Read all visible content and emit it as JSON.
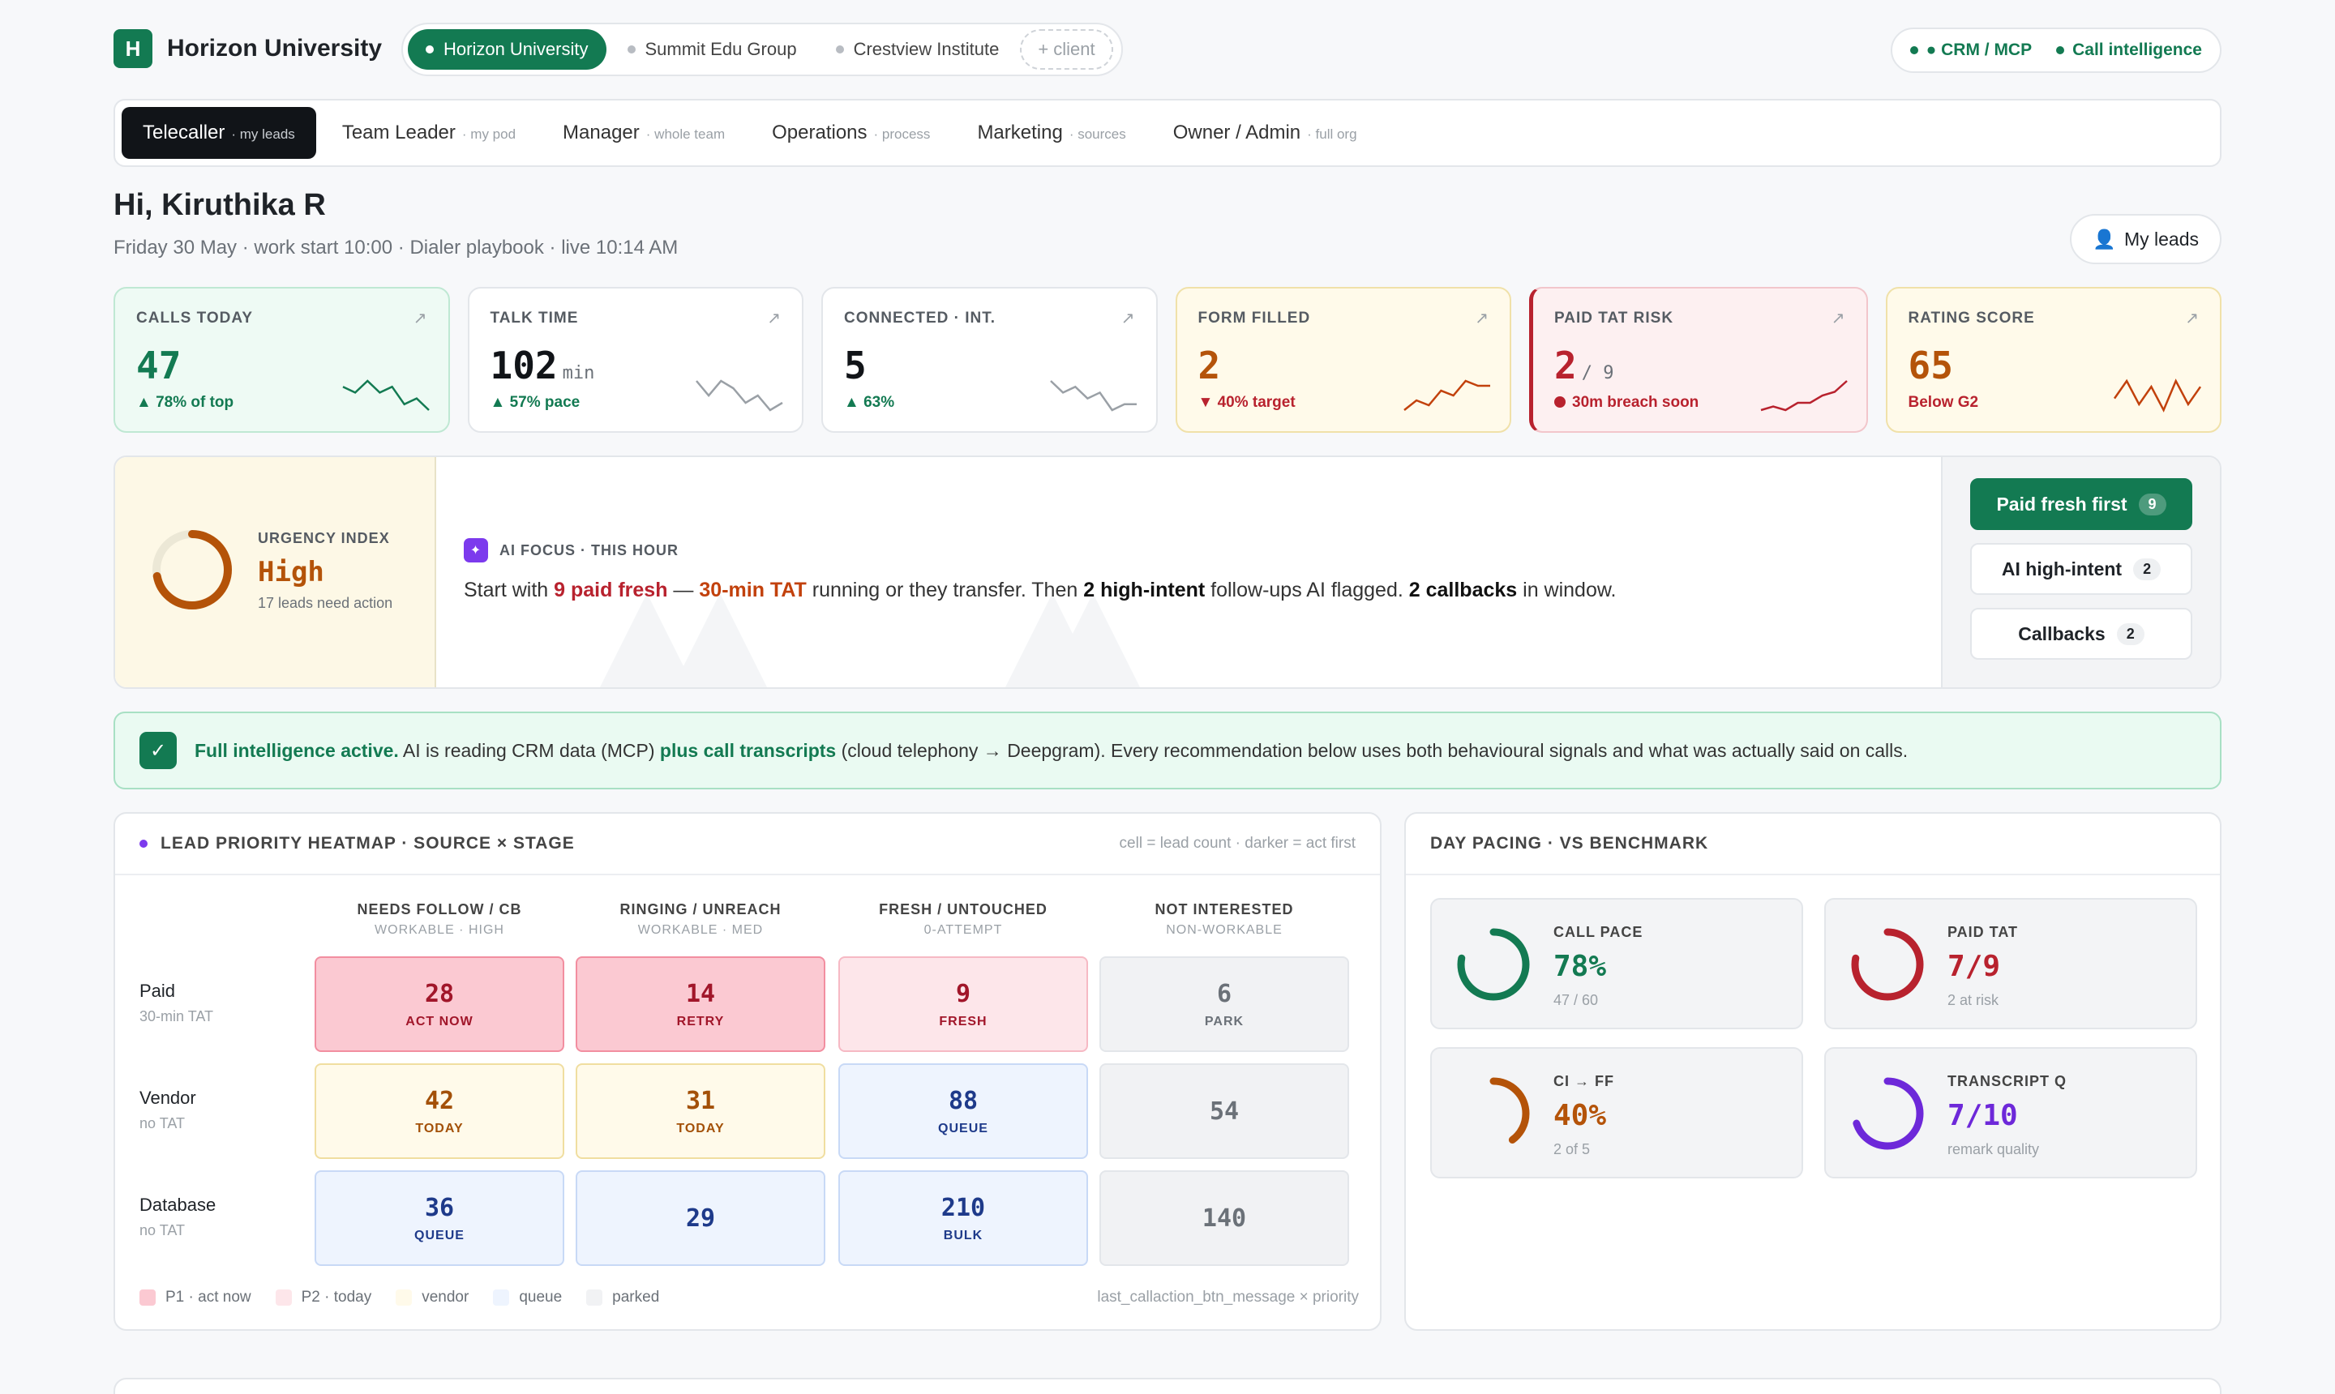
{
  "brand": {
    "logo_letter": "H",
    "name": "Horizon University"
  },
  "clients": [
    {
      "label": "Horizon University",
      "active": true
    },
    {
      "label": "Summit Edu Group",
      "active": false
    },
    {
      "label": "Crestview Institute",
      "active": false
    }
  ],
  "add_client_label": "+ client",
  "integrations": {
    "crm": "● CRM / MCP",
    "call": "Call intelligence"
  },
  "roles": [
    {
      "label": "Telecaller",
      "sub": "· my leads"
    },
    {
      "label": "Team Leader",
      "sub": "· my pod"
    },
    {
      "label": "Manager",
      "sub": "· whole team"
    },
    {
      "label": "Operations",
      "sub": "· process"
    },
    {
      "label": "Marketing",
      "sub": "· sources"
    },
    {
      "label": "Owner / Admin",
      "sub": "· full org"
    }
  ],
  "greeting": "Hi, Kiruthika R",
  "subline": "Friday 30 May · work start 10:00 · Dialer playbook · live 10:14 AM",
  "my_leads_label": "My leads",
  "kpis": [
    {
      "label": "CALLS TODAY",
      "value": "47",
      "unit": "",
      "sub": "▲ 78% of top",
      "tone": "g",
      "sub_color": "#137a52",
      "value_color": "#137a52",
      "spark_color": "#137a52",
      "spark": [
        6,
        7,
        5,
        7,
        6,
        9,
        8,
        10
      ]
    },
    {
      "label": "TALK TIME",
      "value": "102",
      "unit": "min",
      "sub": "▲ 57% pace",
      "tone": "n",
      "sub_color": "#137a52",
      "value_color": "#111418",
      "spark_color": "#9aa0a6",
      "spark": [
        6,
        8,
        6,
        7,
        9,
        8,
        10,
        9
      ]
    },
    {
      "label": "CONNECTED · INT.",
      "value": "5",
      "unit": "",
      "sub": "▲ 63%",
      "tone": "n",
      "sub_color": "#137a52",
      "value_color": "#111418",
      "spark_color": "#9aa0a6",
      "spark": [
        5,
        7,
        6,
        8,
        7,
        10,
        9,
        9
      ]
    },
    {
      "label": "FORM FILLED",
      "value": "2",
      "unit": "",
      "sub": "▼ 40% target",
      "tone": "y",
      "sub_color": "#b8222e",
      "value_color": "#b45309",
      "spark_color": "#c2410c",
      "spark": [
        10,
        8,
        9,
        6,
        7,
        4,
        5,
        5
      ]
    },
    {
      "label": "PAID TAT RISK",
      "value": "2",
      "unit": "/ 9",
      "sub": "30m breach soon",
      "tone": "r",
      "sub_color": "#b8222e",
      "value_color": "#b8222e",
      "spark_color": "#b8222e",
      "spark": [
        10,
        9,
        10,
        8,
        8,
        6,
        5,
        2
      ]
    },
    {
      "label": "RATING SCORE",
      "value": "65",
      "unit": "",
      "sub": "Below G2",
      "tone": "y",
      "sub_color": "#b8222e",
      "value_color": "#b45309",
      "spark_color": "#c2410c",
      "spark": [
        7,
        4,
        8,
        5,
        9,
        4,
        8,
        5
      ]
    }
  ],
  "urgency": {
    "title": "URGENCY INDEX",
    "value": "High",
    "sub": "17 leads need action",
    "fraction": 0.72
  },
  "ai_focus": {
    "tag": "AI FOCUS · THIS HOUR",
    "t1": "Start with ",
    "t2": "9 paid fresh",
    "t3": " — ",
    "t4": "30-min TAT",
    "t5": " running or they transfer. Then ",
    "t6": "2 high-intent",
    "t7": " follow-ups AI flagged. ",
    "t8": "2 callbacks",
    "t9": " in window."
  },
  "queue_buttons": [
    {
      "label": "Paid fresh first",
      "count": "9",
      "active": true
    },
    {
      "label": "AI high-intent",
      "count": "2",
      "active": false
    },
    {
      "label": "Callbacks",
      "count": "2",
      "active": false
    }
  ],
  "banner": {
    "b1": "Full intelligence active.",
    "b2": " AI is reading CRM data (MCP) ",
    "b3": "plus call transcripts",
    "b4": " (cloud telephony → Deepgram). Every recommendation below uses both behavioural signals and what was actually said on calls."
  },
  "heatmap": {
    "title": "LEAD PRIORITY HEATMAP · SOURCE × STAGE",
    "note": "cell = lead count · darker = act first",
    "columns": [
      {
        "name": "NEEDS FOLLOW / CB",
        "sub": "WORKABLE · HIGH"
      },
      {
        "name": "RINGING / UNREACH",
        "sub": "WORKABLE · MED"
      },
      {
        "name": "FRESH / UNTOUCHED",
        "sub": "0-ATTEMPT"
      },
      {
        "name": "NOT INTERESTED",
        "sub": "NON-WORKABLE"
      }
    ],
    "rows": [
      {
        "name": "Paid",
        "sub": "30-min TAT",
        "cells": [
          {
            "n": "28",
            "t": "ACT NOW",
            "c": "p1"
          },
          {
            "n": "14",
            "t": "RETRY",
            "c": "p1"
          },
          {
            "n": "9",
            "t": "FRESH",
            "c": "p2"
          },
          {
            "n": "6",
            "t": "PARK",
            "c": "pk"
          }
        ]
      },
      {
        "name": "Vendor",
        "sub": "no TAT",
        "cells": [
          {
            "n": "42",
            "t": "TODAY",
            "c": "ve"
          },
          {
            "n": "31",
            "t": "TODAY",
            "c": "ve"
          },
          {
            "n": "88",
            "t": "QUEUE",
            "c": "qu"
          },
          {
            "n": "54",
            "t": "",
            "c": "pk"
          }
        ]
      },
      {
        "name": "Database",
        "sub": "no TAT",
        "cells": [
          {
            "n": "36",
            "t": "QUEUE",
            "c": "qu"
          },
          {
            "n": "29",
            "t": "",
            "c": "qu"
          },
          {
            "n": "210",
            "t": "BULK",
            "c": "qu"
          },
          {
            "n": "140",
            "t": "",
            "c": "pk"
          }
        ]
      }
    ],
    "legend": [
      {
        "label": "P1 · act now",
        "color": "#fbc9d2"
      },
      {
        "label": "P2 · today",
        "color": "#fde6ea"
      },
      {
        "label": "vendor",
        "color": "#fffaea"
      },
      {
        "label": "queue",
        "color": "#eef4fe"
      },
      {
        "label": "parked",
        "color": "#f1f2f4"
      }
    ],
    "legend_right": "last_callaction_btn_message × priority"
  },
  "pacing": {
    "title": "DAY PACING · VS BENCHMARK",
    "cards": [
      {
        "label": "CALL PACE",
        "value": "78%",
        "sub": "47 / 60",
        "fraction": 0.78,
        "color": "#137a52"
      },
      {
        "label": "PAID TAT",
        "value": "7/9",
        "sub": "2 at risk",
        "fraction": 0.78,
        "color": "#b8222e"
      },
      {
        "label": "CI → FF",
        "value": "40%",
        "sub": "2 of 5",
        "fraction": 0.4,
        "color": "#b45309"
      },
      {
        "label": "TRANSCRIPT Q",
        "value": "7/10",
        "sub": "remark quality",
        "fraction": 0.7,
        "color": "#6d28d9"
      }
    ]
  }
}
